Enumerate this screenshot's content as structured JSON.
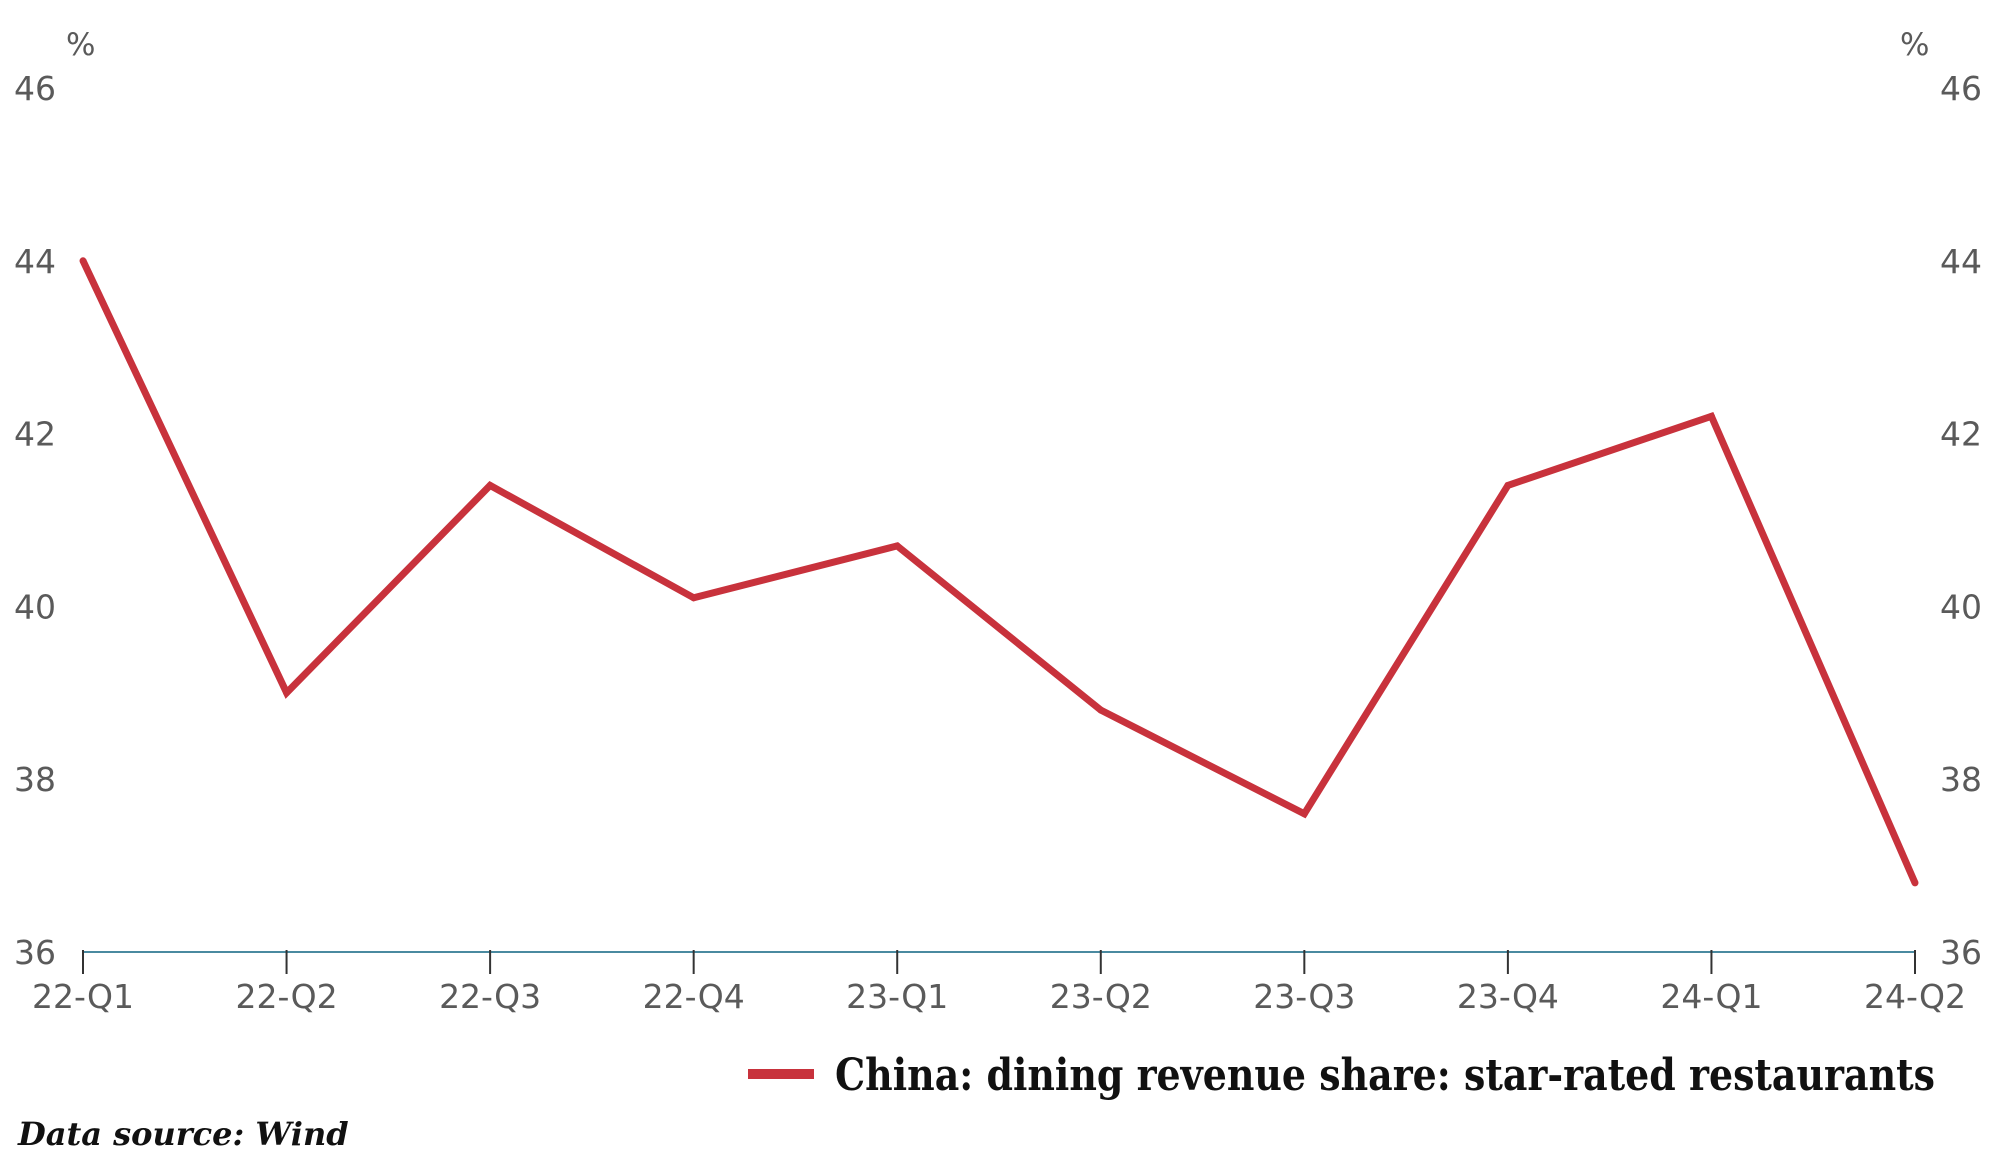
{
  "chart_data": {
    "type": "line",
    "categories": [
      "22-Q1",
      "22-Q2",
      "22-Q3",
      "22-Q4",
      "23-Q1",
      "23-Q2",
      "23-Q3",
      "23-Q4",
      "24-Q1",
      "24-Q2"
    ],
    "series": [
      {
        "name": "China: dining revenue share: star-rated restaurants",
        "values": [
          44.0,
          39.0,
          41.4,
          40.1,
          40.7,
          38.8,
          37.6,
          41.4,
          42.2,
          36.8
        ],
        "color": "#c8323c"
      }
    ],
    "ylim": [
      36,
      46
    ],
    "yticks": [
      "46",
      "44",
      "42",
      "40",
      "38",
      "36"
    ],
    "y_unit_left": "%",
    "y_unit_right": "%",
    "axis_color": "#4a8aa0",
    "grid": false,
    "legend_position": "bottom-right",
    "source": "Data source: Wind"
  }
}
